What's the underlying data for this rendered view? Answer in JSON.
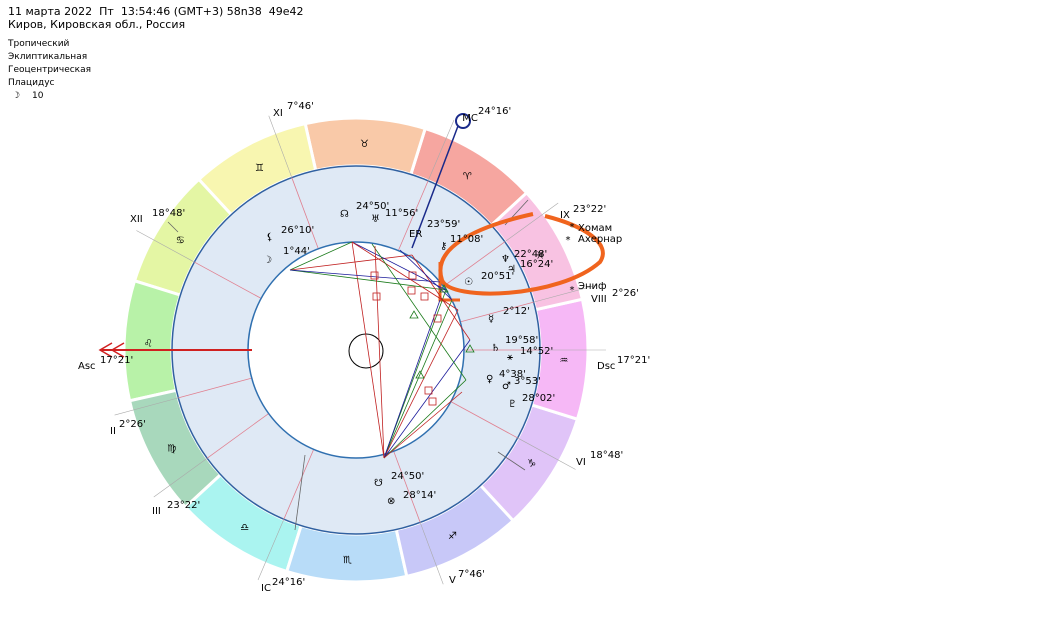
{
  "header": {
    "date_line": "11 марта 2022  Пт  13:54:46 (GMT+3) 58n38  49e42",
    "location": "Киров, Кировская обл., Россия"
  },
  "settings": {
    "lines": [
      "Тропический",
      "Эклиптикальная",
      "Геоцентрическая",
      "Плацидус"
    ],
    "moon_symbol": "☽",
    "moon_value": "10"
  },
  "signs": [
    {
      "glyph": "♈",
      "color": "#f6a6a0"
    },
    {
      "glyph": "♉",
      "color": "#f9c9a8"
    },
    {
      "glyph": "♊",
      "color": "#f8f6b0"
    },
    {
      "glyph": "♋",
      "color": "#e4f6a4"
    },
    {
      "glyph": "♌",
      "color": "#b8f2a8"
    },
    {
      "glyph": "♍",
      "color": "#a8d8bc"
    },
    {
      "glyph": "♎",
      "color": "#aaf4f0"
    },
    {
      "glyph": "♏",
      "color": "#b8dcf8"
    },
    {
      "glyph": "♐",
      "color": "#c8c8f8"
    },
    {
      "glyph": "♑",
      "color": "#e0c4f8"
    },
    {
      "glyph": "♒",
      "color": "#f6b8f6"
    },
    {
      "glyph": "♓",
      "color": "#f8c2e2"
    }
  ],
  "houses": [
    {
      "label": "XI",
      "degree": "7°46'"
    },
    {
      "label": "XII",
      "degree": "18°48'"
    },
    {
      "label": "Asc",
      "degree": "17°21'"
    },
    {
      "label": "II",
      "degree": "2°26'"
    },
    {
      "label": "III",
      "degree": "23°22'"
    },
    {
      "label": "IC",
      "degree": "24°16'"
    },
    {
      "label": "V",
      "degree": "7°46'"
    },
    {
      "label": "VI",
      "degree": "18°48'"
    },
    {
      "label": "Dsc",
      "degree": "17°21'"
    },
    {
      "label": "VIII",
      "degree": "2°26'"
    },
    {
      "label": "IX",
      "degree": "23°22'"
    },
    {
      "label": "MC",
      "degree": "24°16'"
    }
  ],
  "planets": [
    {
      "glyph": "⚸",
      "degree": "26°10'"
    },
    {
      "glyph": "☽",
      "degree": "1°44'"
    },
    {
      "glyph": "☊",
      "degree": "24°50'"
    },
    {
      "glyph": "♅",
      "degree": "11°56'"
    },
    {
      "glyph": "ER",
      "degree": "23°59'"
    },
    {
      "glyph": "⚷",
      "degree": "11°08'"
    },
    {
      "glyph": "♆",
      "degree": "22°48'"
    },
    {
      "glyph": "♃",
      "degree": "16°24'"
    },
    {
      "glyph": "☉",
      "degree": "20°51'"
    },
    {
      "glyph": "☿",
      "degree": "2°12'"
    },
    {
      "glyph": "♄",
      "degree": "19°58'"
    },
    {
      "glyph": "⚹",
      "degree": "14°52'"
    },
    {
      "glyph": "♀",
      "degree": "4°38'"
    },
    {
      "glyph": "♂",
      "degree": "3°53'"
    },
    {
      "glyph": "♇",
      "degree": "28°02'"
    },
    {
      "glyph": "☋",
      "degree": "24°50'"
    },
    {
      "glyph": "⊗",
      "degree": "28°14'"
    }
  ],
  "stars": [
    "Хомам",
    "Ахернар",
    "Эниф"
  ]
}
